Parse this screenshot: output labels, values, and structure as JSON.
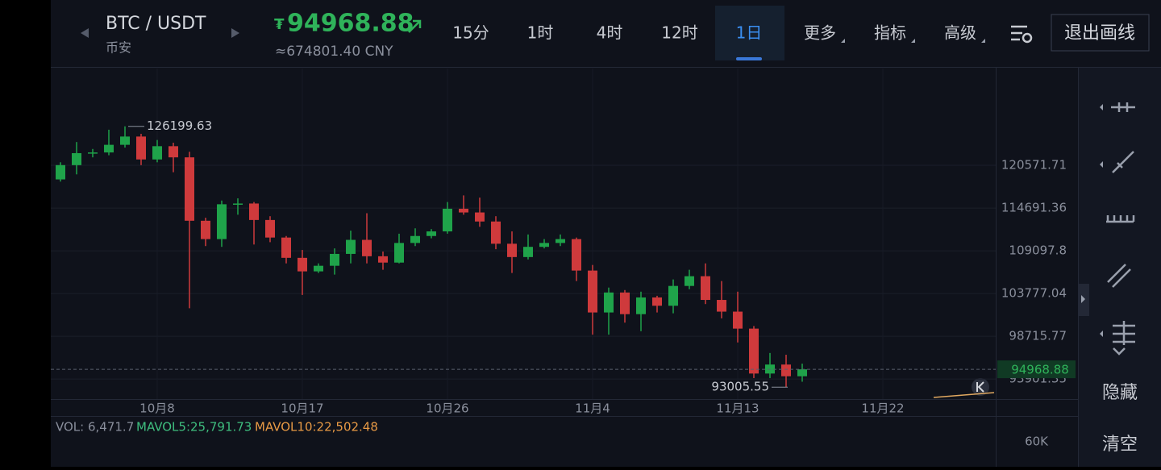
{
  "header": {
    "symbol": "BTC / USDT",
    "exchange": "币安",
    "currency_mark": "₮",
    "price": "94968.88",
    "price_cny": "≈674801.40 CNY",
    "tabs": [
      "15分",
      "1时",
      "4时",
      "12时",
      "1日",
      "更多",
      "指标",
      "高级"
    ],
    "selected_tab": 4,
    "menu_tabs": [
      5,
      6,
      7
    ],
    "exit_button": "退出画线"
  },
  "chart_data": {
    "type": "candlestick",
    "log_scale": true,
    "grid": true,
    "up_color": "#1fa34a",
    "down_color": "#cf3a3c",
    "categories": [
      null,
      null,
      null,
      null,
      null,
      null,
      "10月8",
      null,
      null,
      null,
      null,
      null,
      null,
      null,
      null,
      "10月17",
      null,
      null,
      null,
      null,
      null,
      null,
      null,
      null,
      "10月26",
      null,
      null,
      null,
      null,
      null,
      null,
      null,
      null,
      "11月4",
      null,
      null,
      null,
      null,
      null,
      null,
      null,
      null,
      "11月13",
      null,
      null,
      null,
      null,
      null,
      null,
      null,
      null,
      "11月22"
    ],
    "open": [
      118600,
      120600,
      122300,
      122400,
      123500,
      124700,
      121400,
      123300,
      121700,
      113000,
      110600,
      115200,
      115300,
      113100,
      110800,
      108200,
      106500,
      107200,
      108700,
      110500,
      108400,
      107600,
      110100,
      111000,
      111600,
      114600,
      114100,
      112900,
      110000,
      108300,
      109600,
      110100,
      110600,
      106600,
      101500,
      103900,
      101300,
      103300,
      102300,
      104700,
      105900,
      103000,
      101600,
      99600,
      94500,
      95500,
      94200,
      null,
      null,
      null,
      null,
      null
    ],
    "high": [
      121000,
      123900,
      122900,
      125700,
      126199.63,
      125100,
      124200,
      123800,
      122500,
      113400,
      115700,
      116000,
      115500,
      113600,
      111000,
      109200,
      107500,
      109400,
      111700,
      114000,
      109000,
      111300,
      112000,
      111900,
      115500,
      116400,
      116100,
      113600,
      111600,
      111200,
      110600,
      111200,
      110800,
      107300,
      104500,
      104200,
      104000,
      103500,
      105500,
      106700,
      107500,
      105300,
      104000,
      99900,
      96800,
      96600,
      95600,
      null,
      null,
      null,
      null,
      null
    ],
    "low": [
      118300,
      119300,
      121700,
      122000,
      123100,
      120600,
      121000,
      119600,
      102000,
      109700,
      109600,
      113800,
      109900,
      110200,
      107500,
      103600,
      106300,
      106100,
      107500,
      107500,
      106700,
      107500,
      109700,
      110700,
      111300,
      113800,
      112200,
      109300,
      106300,
      108000,
      109400,
      109700,
      105300,
      98900,
      98900,
      100300,
      99300,
      101500,
      101400,
      104300,
      102500,
      100800,
      98000,
      94000,
      94000,
      93005.55,
      93600,
      null,
      null,
      null,
      null,
      null
    ],
    "close": [
      120600,
      122300,
      122400,
      123500,
      124700,
      121400,
      123300,
      121700,
      113000,
      110600,
      115200,
      115300,
      113100,
      110800,
      108200,
      106500,
      107200,
      108700,
      110500,
      108400,
      107600,
      110100,
      111000,
      111600,
      114600,
      114100,
      112900,
      110000,
      108300,
      109600,
      110100,
      110600,
      106600,
      101500,
      103900,
      101300,
      103300,
      102300,
      104700,
      105900,
      103000,
      101600,
      99600,
      94500,
      95500,
      94200,
      94968.88,
      null,
      null,
      null,
      null,
      null
    ],
    "ylim": [
      91720,
      135030
    ],
    "yticks": [
      93901.35,
      98715.77,
      103777.04,
      109097.8,
      114691.36,
      120571.71
    ],
    "last_price": 94968.88,
    "high_note": 4,
    "low_note": 45,
    "volume_info": [
      "VOL: 6,471.7",
      "MAVOL5:25,791.73",
      "MAVOL10:22,502.48"
    ],
    "volume_tick": "60K"
  },
  "sidebar": {
    "hide": "隐藏",
    "clear": "清空"
  }
}
